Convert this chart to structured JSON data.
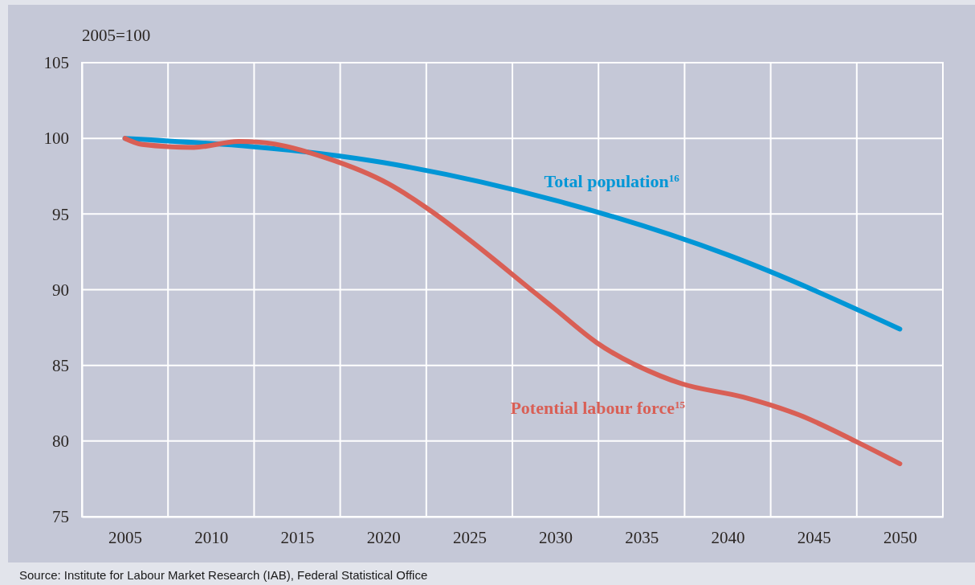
{
  "chart_data": {
    "type": "line",
    "ylabel": "2005=100",
    "annotations": [
      "Source: Institute for Labour Market Research (IAB), Federal Statistical Office"
    ],
    "xlim": [
      2002.5,
      2052.5
    ],
    "xticks": [
      2005,
      {
        "value": 2007.5,
        "label": null
      },
      2010,
      {
        "value": 2012.5,
        "label": null
      },
      2015,
      {
        "value": 2017.5,
        "label": null
      },
      2020,
      {
        "value": 2022.5,
        "label": null
      },
      2025,
      {
        "value": 2027.5,
        "label": null
      },
      2030,
      {
        "value": 2032.5,
        "label": null
      },
      2035,
      {
        "value": 2037.5,
        "label": null
      },
      2040,
      {
        "value": 2042.5,
        "label": null
      },
      2045,
      {
        "value": 2047.5,
        "label": null
      },
      2050
    ],
    "ylim": [
      75,
      105
    ],
    "yticks": [
      75,
      80,
      85,
      90,
      95,
      100,
      105
    ],
    "grid": true,
    "line_style": "solid",
    "marker": "none",
    "series": [
      {
        "name": "Total population$^{16}$",
        "color": "#0096d6",
        "x": [
          2005,
          2020,
          2030,
          2040,
          2050
        ],
        "values": [
          100,
          98.4,
          95.9,
          92.3,
          87.4
        ]
      },
      {
        "name": "Potential labour force$^{15}$",
        "color": "#d95f55",
        "x": [
          2005,
          2006,
          2009,
          2011.6,
          2012.8,
          2016.7,
          2020.3,
          2022.9,
          2025,
          2028.8,
          2030,
          2032.4,
          2036.1,
          2037.3,
          2040.9,
          2044.2,
          2047.4,
          2050
        ],
        "values": [
          100,
          99.6,
          99.4,
          99.8,
          99.75,
          98.7,
          97.0,
          95.1,
          93.3,
          89.8,
          88.7,
          86.5,
          84.3,
          83.8,
          82.9,
          81.7,
          80.0,
          78.5
        ]
      }
    ]
  }
}
